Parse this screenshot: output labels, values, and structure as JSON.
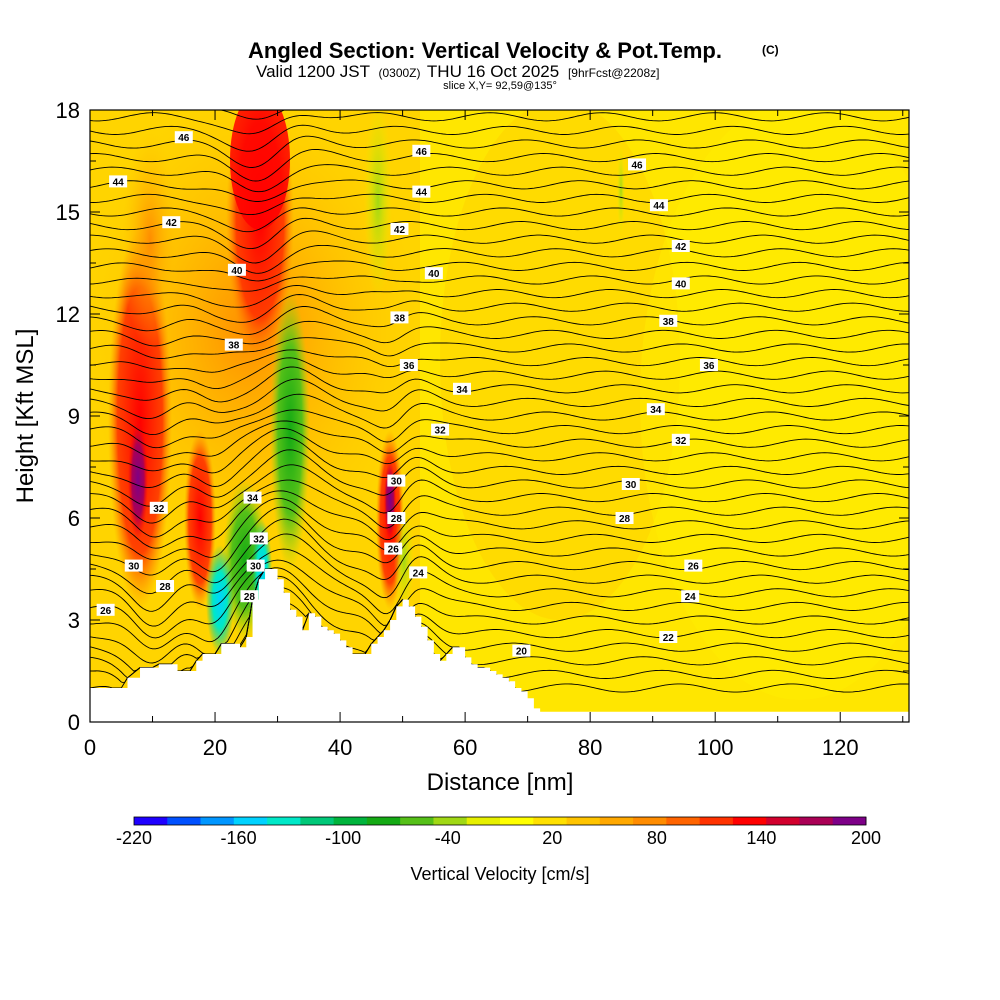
{
  "title": {
    "main": "Angled Section: Vertical Velocity & Pot.Temp.",
    "main_suffix": "(C)",
    "valid_pre": "Valid 1200 JST",
    "valid_utc": "(0300Z)",
    "valid_date": "THU 16 Oct 2025",
    "forecast": "[9hrFcst@2208z]",
    "slice": "slice X,Y= 92,59@135°"
  },
  "chart_data": {
    "type": "cross-section",
    "xlabel": "Distance [nm]",
    "ylabel": "Height [Kft MSL]",
    "xlim": [
      0,
      131
    ],
    "ylim": [
      0,
      18
    ],
    "x_ticks": [
      {
        "v": 0,
        "label": "0"
      },
      {
        "v": 20,
        "label": "20"
      },
      {
        "v": 40,
        "label": "40"
      },
      {
        "v": 60,
        "label": "60"
      },
      {
        "v": 80,
        "label": "80"
      },
      {
        "v": 100,
        "label": "100"
      },
      {
        "v": 120,
        "label": "120"
      }
    ],
    "y_ticks": [
      {
        "v": 0,
        "label": "0"
      },
      {
        "v": 3,
        "label": "3"
      },
      {
        "v": 6,
        "label": "6"
      },
      {
        "v": 9,
        "label": "9"
      },
      {
        "v": 12,
        "label": "12"
      },
      {
        "v": 15,
        "label": "15"
      },
      {
        "v": 18,
        "label": "18"
      }
    ],
    "colorbar": {
      "label": "Vertical Velocity [cm/s]",
      "min": -220,
      "max": 200,
      "colors": [
        "#1e00ff",
        "#0050ff",
        "#0096ff",
        "#00d2ff",
        "#00e8c8",
        "#00c878",
        "#00b43c",
        "#14aa14",
        "#55c018",
        "#a0d814",
        "#e6f000",
        "#ffff00",
        "#ffe000",
        "#ffc400",
        "#ffa800",
        "#ff8c00",
        "#ff6400",
        "#ff3200",
        "#ff0000",
        "#d2002d",
        "#aa0055",
        "#7d0087"
      ],
      "ticks": [
        {
          "v": -220,
          "label": "-220"
        },
        {
          "v": -160,
          "label": "-160"
        },
        {
          "v": -100,
          "label": "-100"
        },
        {
          "v": -40,
          "label": "-40"
        },
        {
          "v": 20,
          "label": "20"
        },
        {
          "v": 80,
          "label": "80"
        },
        {
          "v": 140,
          "label": "140"
        },
        {
          "v": 200,
          "label": "200"
        }
      ]
    },
    "terrain_kft": [
      [
        0,
        1.0
      ],
      [
        2,
        1.0
      ],
      [
        5,
        1.0
      ],
      [
        6,
        1.3
      ],
      [
        8,
        1.6
      ],
      [
        10,
        1.6
      ],
      [
        11,
        1.7
      ],
      [
        13,
        1.7
      ],
      [
        14,
        1.5
      ],
      [
        16,
        1.5
      ],
      [
        17,
        1.8
      ],
      [
        18,
        2.0
      ],
      [
        20,
        2.0
      ],
      [
        21,
        2.3
      ],
      [
        23,
        2.3
      ],
      [
        24,
        2.2
      ],
      [
        25,
        2.5
      ],
      [
        26,
        3.6
      ],
      [
        27,
        4.2
      ],
      [
        28,
        4.5
      ],
      [
        29,
        4.5
      ],
      [
        30,
        4.2
      ],
      [
        31,
        3.8
      ],
      [
        32,
        3.3
      ],
      [
        33,
        3.1
      ],
      [
        34,
        2.7
      ],
      [
        35,
        3.2
      ],
      [
        36,
        3.1
      ],
      [
        37,
        2.8
      ],
      [
        38,
        2.7
      ],
      [
        39,
        2.6
      ],
      [
        40,
        2.4
      ],
      [
        41,
        2.2
      ],
      [
        42,
        2.0
      ],
      [
        44,
        2.0
      ],
      [
        45,
        2.3
      ],
      [
        46,
        2.5
      ],
      [
        47,
        2.7
      ],
      [
        48,
        3.0
      ],
      [
        49,
        3.4
      ],
      [
        50,
        3.6
      ],
      [
        51,
        3.4
      ],
      [
        52,
        3.1
      ],
      [
        53,
        2.8
      ],
      [
        54,
        2.4
      ],
      [
        55,
        2.0
      ],
      [
        56,
        1.8
      ],
      [
        57,
        2.0
      ],
      [
        58,
        2.2
      ],
      [
        59,
        2.2
      ],
      [
        60,
        1.9
      ],
      [
        61,
        1.7
      ],
      [
        62,
        1.6
      ],
      [
        63,
        1.6
      ],
      [
        64,
        1.5
      ],
      [
        65,
        1.4
      ],
      [
        66,
        1.3
      ],
      [
        67,
        1.2
      ],
      [
        68,
        1.0
      ],
      [
        69,
        0.9
      ],
      [
        70,
        0.7
      ],
      [
        71,
        0.4
      ],
      [
        72,
        0.3
      ],
      [
        131,
        0.3
      ]
    ],
    "contour_labels": [
      {
        "x": 15,
        "y": 17.2,
        "label": "46"
      },
      {
        "x": 53,
        "y": 16.8,
        "label": "46"
      },
      {
        "x": 87.5,
        "y": 16.4,
        "label": "46"
      },
      {
        "x": 4.5,
        "y": 15.9,
        "label": "44"
      },
      {
        "x": 53,
        "y": 15.6,
        "label": "44"
      },
      {
        "x": 91,
        "y": 15.2,
        "label": "44"
      },
      {
        "x": 13,
        "y": 14.7,
        "label": "42"
      },
      {
        "x": 49.5,
        "y": 14.5,
        "label": "42"
      },
      {
        "x": 94.5,
        "y": 14.0,
        "label": "42"
      },
      {
        "x": 23.5,
        "y": 13.3,
        "label": "40"
      },
      {
        "x": 55,
        "y": 13.2,
        "label": "40"
      },
      {
        "x": 94.5,
        "y": 12.9,
        "label": "40"
      },
      {
        "x": 23,
        "y": 11.1,
        "label": "38"
      },
      {
        "x": 49.5,
        "y": 11.9,
        "label": "38"
      },
      {
        "x": 92.5,
        "y": 11.8,
        "label": "38"
      },
      {
        "x": 51,
        "y": 10.5,
        "label": "36"
      },
      {
        "x": 99,
        "y": 10.5,
        "label": "36"
      },
      {
        "x": 59.5,
        "y": 9.8,
        "label": "34"
      },
      {
        "x": 90.5,
        "y": 9.2,
        "label": "34"
      },
      {
        "x": 26,
        "y": 6.6,
        "label": "34"
      },
      {
        "x": 56,
        "y": 8.6,
        "label": "32"
      },
      {
        "x": 94.5,
        "y": 8.3,
        "label": "32"
      },
      {
        "x": 11,
        "y": 6.3,
        "label": "32"
      },
      {
        "x": 27,
        "y": 5.4,
        "label": "32"
      },
      {
        "x": 86.5,
        "y": 7.0,
        "label": "30"
      },
      {
        "x": 49,
        "y": 7.1,
        "label": "30"
      },
      {
        "x": 7,
        "y": 4.6,
        "label": "30"
      },
      {
        "x": 26.5,
        "y": 4.6,
        "label": "30"
      },
      {
        "x": 85.5,
        "y": 6.0,
        "label": "28"
      },
      {
        "x": 49,
        "y": 6.0,
        "label": "28"
      },
      {
        "x": 12,
        "y": 4.0,
        "label": "28"
      },
      {
        "x": 25.5,
        "y": 3.7,
        "label": "28"
      },
      {
        "x": 48.5,
        "y": 5.1,
        "label": "26"
      },
      {
        "x": 96.5,
        "y": 4.6,
        "label": "26"
      },
      {
        "x": 2.5,
        "y": 3.3,
        "label": "26"
      },
      {
        "x": 52.5,
        "y": 4.4,
        "label": "24"
      },
      {
        "x": 96,
        "y": 3.7,
        "label": "24"
      },
      {
        "x": 92.5,
        "y": 2.5,
        "label": "22"
      },
      {
        "x": 69,
        "y": 2.1,
        "label": "20"
      }
    ]
  }
}
